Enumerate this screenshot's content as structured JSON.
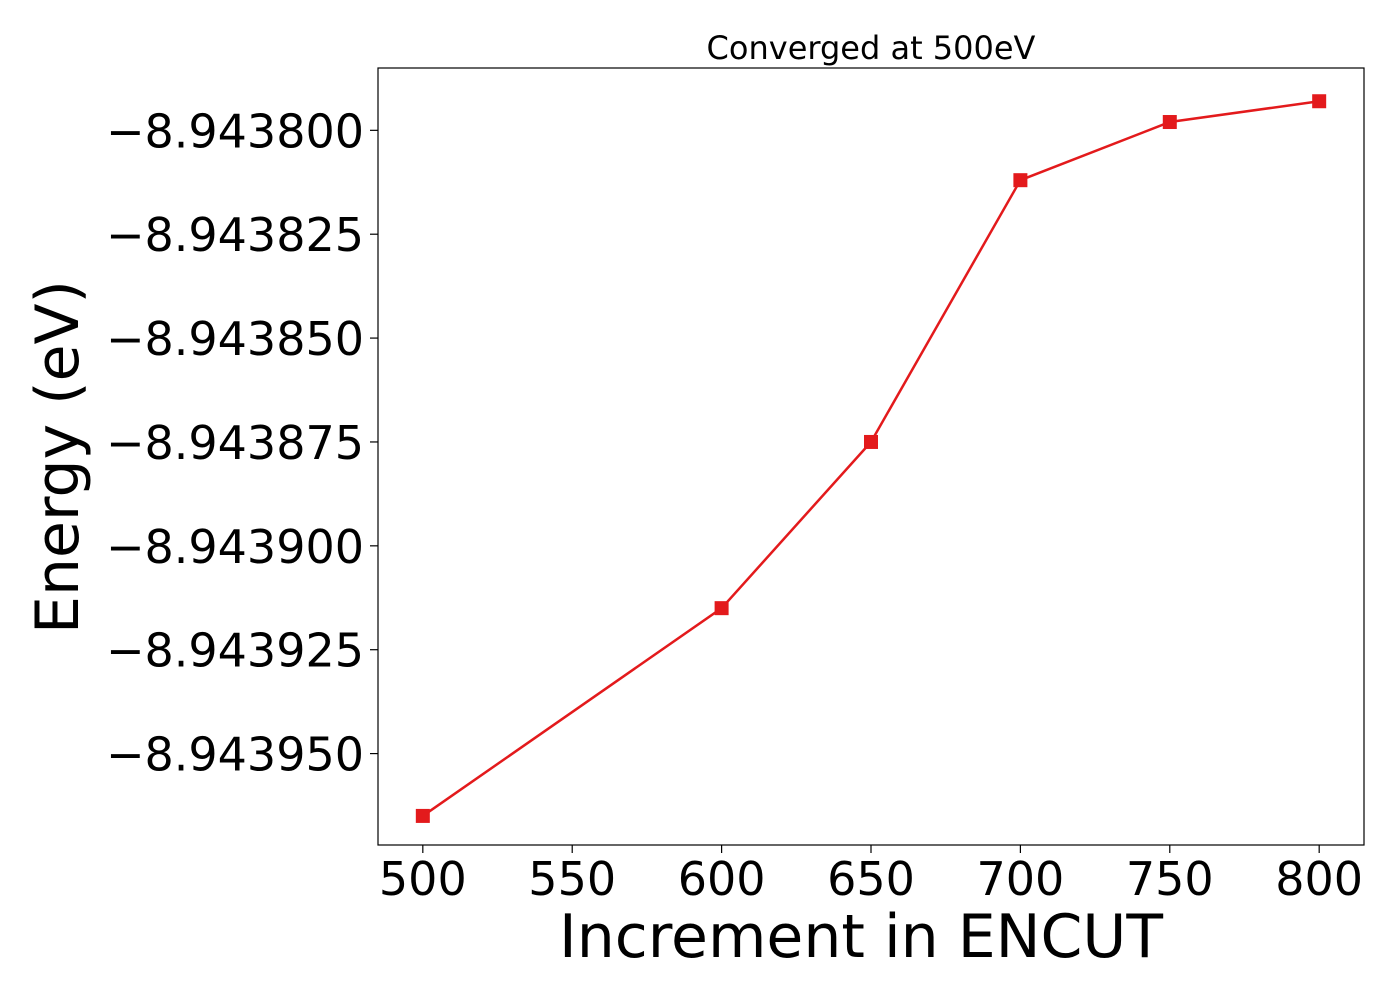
{
  "chart_data": {
    "type": "line",
    "title": "Converged at 500eV",
    "xlabel": "Increment in ENCUT",
    "ylabel": "Energy (eV)",
    "xlim": [
      485,
      815
    ],
    "ylim": [
      -8.943972,
      -8.943785
    ],
    "x_ticks": [
      500,
      550,
      600,
      650,
      700,
      750,
      800
    ],
    "x_tick_labels": [
      "500",
      "550",
      "600",
      "650",
      "700",
      "750",
      "800"
    ],
    "y_ticks": [
      -8.9438,
      -8.943825,
      -8.94385,
      -8.943875,
      -8.9439,
      -8.943925,
      -8.94395
    ],
    "y_tick_labels": [
      "−8.943800",
      "−8.943825",
      "−8.943850",
      "−8.943875",
      "−8.943900",
      "−8.943925",
      "−8.943950"
    ],
    "grid": false,
    "marker": "square",
    "series": [
      {
        "color": "#e31a1c",
        "x": [
          500,
          600,
          650,
          700,
          750,
          800
        ],
        "y": [
          -8.943965,
          -8.943915,
          -8.943875,
          -8.943812,
          -8.943798,
          -8.943793
        ]
      }
    ]
  }
}
